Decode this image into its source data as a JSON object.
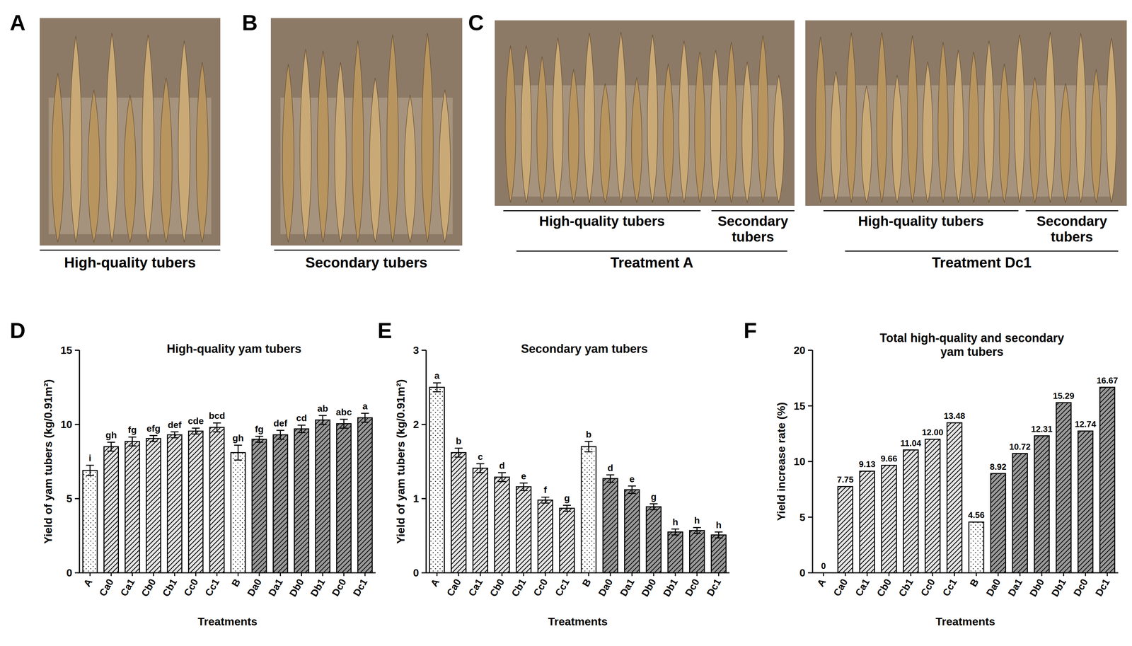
{
  "figure": {
    "photo_panels": [
      {
        "letter": "A",
        "caption": "High-quality tubers"
      },
      {
        "letter": "B",
        "caption": "Secondary tubers"
      },
      {
        "letter": "C",
        "images": [
          {
            "groups": [
              "High-quality tubers",
              "Secondary tubers"
            ],
            "treatment": "Treatment A"
          },
          {
            "groups": [
              "High-quality tubers",
              "Secondary tubers"
            ],
            "treatment": "Treatment Dc1"
          }
        ]
      }
    ],
    "chart_letters": [
      "D",
      "E",
      "F"
    ]
  },
  "chart_data": [
    {
      "type": "bar",
      "title": "High-quality yam tubers",
      "x_label": "Treatments",
      "y_label": "Yield of yam tubers (kg/0.91m²)",
      "categories": [
        "A",
        "Ca0",
        "Ca1",
        "Cb0",
        "Cb1",
        "Cc0",
        "Cc1",
        "B",
        "Da0",
        "Da1",
        "Db0",
        "Db1",
        "Dc0",
        "Dc1"
      ],
      "values": [
        6.9,
        8.5,
        8.85,
        9.05,
        9.3,
        9.55,
        9.8,
        8.1,
        9.0,
        9.3,
        9.7,
        10.3,
        10.05,
        10.45
      ],
      "errors": [
        0.35,
        0.3,
        0.3,
        0.2,
        0.2,
        0.2,
        0.3,
        0.5,
        0.2,
        0.3,
        0.25,
        0.3,
        0.3,
        0.3
      ],
      "letters": [
        "i",
        "gh",
        "fg",
        "efg",
        "def",
        "cde",
        "bcd",
        "gh",
        "fg",
        "def",
        "cd",
        "ab",
        "abc",
        "a"
      ],
      "colors": [
        "#ffffff",
        "#e6e6e6",
        "#e6e6e6",
        "#e6e6e6",
        "#e6e6e6",
        "#e6e6e6",
        "#e6e6e6",
        "#ffffff",
        "#9a9a9a",
        "#9a9a9a",
        "#9a9a9a",
        "#9a9a9a",
        "#9a9a9a",
        "#9a9a9a"
      ],
      "ylim": [
        0,
        15
      ],
      "yticks": [
        0,
        5,
        10,
        15
      ],
      "grid": false
    },
    {
      "type": "bar",
      "title": "Secondary yam tubers",
      "x_label": "Treatments",
      "y_label": "Yield of yam tubers (kg/0.91m²)",
      "categories": [
        "A",
        "Ca0",
        "Ca1",
        "Cb0",
        "Cb1",
        "Cc0",
        "Cc1",
        "B",
        "Da0",
        "Da1",
        "Db0",
        "Db1",
        "Dc0",
        "Dc1"
      ],
      "values": [
        2.5,
        1.62,
        1.41,
        1.29,
        1.16,
        0.98,
        0.87,
        1.7,
        1.27,
        1.12,
        0.89,
        0.55,
        0.57,
        0.51
      ],
      "errors": [
        0.06,
        0.06,
        0.06,
        0.06,
        0.05,
        0.04,
        0.04,
        0.07,
        0.05,
        0.05,
        0.04,
        0.04,
        0.04,
        0.04
      ],
      "letters": [
        "a",
        "b",
        "c",
        "d",
        "e",
        "f",
        "g",
        "b",
        "d",
        "e",
        "g",
        "h",
        "h",
        "h"
      ],
      "colors": [
        "#ffffff",
        "#e6e6e6",
        "#e6e6e6",
        "#e6e6e6",
        "#e6e6e6",
        "#e6e6e6",
        "#e6e6e6",
        "#ffffff",
        "#9a9a9a",
        "#9a9a9a",
        "#9a9a9a",
        "#9a9a9a",
        "#9a9a9a",
        "#9a9a9a"
      ],
      "ylim": [
        0,
        3
      ],
      "yticks": [
        0,
        1,
        2,
        3
      ],
      "grid": false
    },
    {
      "type": "bar",
      "title": "Total high-quality and secondary yam tubers",
      "x_label": "Treatments",
      "y_label": "Yield increase rate (%)",
      "categories": [
        "A",
        "Ca0",
        "Ca1",
        "Cb0",
        "Cb1",
        "Cc0",
        "Cc1",
        "B",
        "Da0",
        "Da1",
        "Db0",
        "Db1",
        "Dc0",
        "Dc1"
      ],
      "values": [
        0,
        7.75,
        9.13,
        9.66,
        11.04,
        12.0,
        13.48,
        4.56,
        8.92,
        10.72,
        12.31,
        15.29,
        12.74,
        16.67
      ],
      "value_labels": [
        "0",
        "7.75",
        "9.13",
        "9.66",
        "11.04",
        "12.00",
        "13.48",
        "4.56",
        "8.92",
        "10.72",
        "12.31",
        "15.29",
        "12.74",
        "16.67"
      ],
      "data_labels": true,
      "colors": [
        "#ffffff",
        "#e6e6e6",
        "#e6e6e6",
        "#e6e6e6",
        "#e6e6e6",
        "#e6e6e6",
        "#e6e6e6",
        "#ffffff",
        "#9a9a9a",
        "#9a9a9a",
        "#9a9a9a",
        "#9a9a9a",
        "#9a9a9a",
        "#9a9a9a"
      ],
      "ylim": [
        0,
        20
      ],
      "yticks": [
        0,
        5,
        10,
        15,
        20
      ],
      "grid": false
    }
  ]
}
